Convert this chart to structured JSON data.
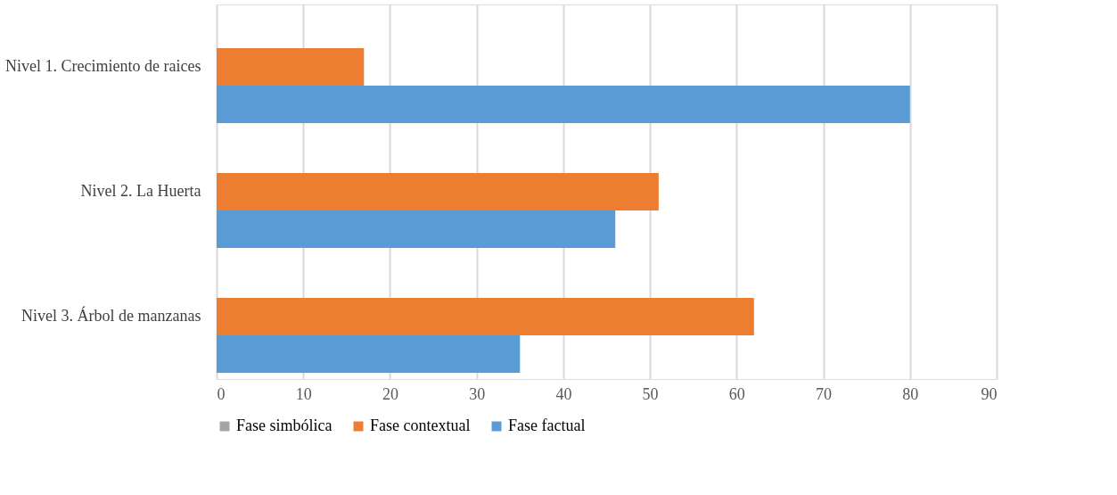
{
  "chart_data": {
    "type": "bar",
    "orientation": "horizontal",
    "categories": [
      "Nivel 1. Crecimiento de raices",
      "Nivel 2. La Huerta",
      "Nivel 3. Árbol de manzanas"
    ],
    "series": [
      {
        "name": "Fase simbólica",
        "color": "#a5a5a5",
        "values": [
          0,
          0,
          0
        ]
      },
      {
        "name": "Fase contextual",
        "color": "#ed7d31",
        "values": [
          17,
          51,
          62
        ]
      },
      {
        "name": "Fase factual",
        "color": "#5b9bd5",
        "values": [
          80,
          46,
          35
        ]
      }
    ],
    "xlim": [
      0,
      90
    ],
    "xticks": [
      0,
      10,
      20,
      30,
      40,
      50,
      60,
      70,
      80,
      90
    ],
    "grid": "x",
    "legend": "bottom"
  }
}
